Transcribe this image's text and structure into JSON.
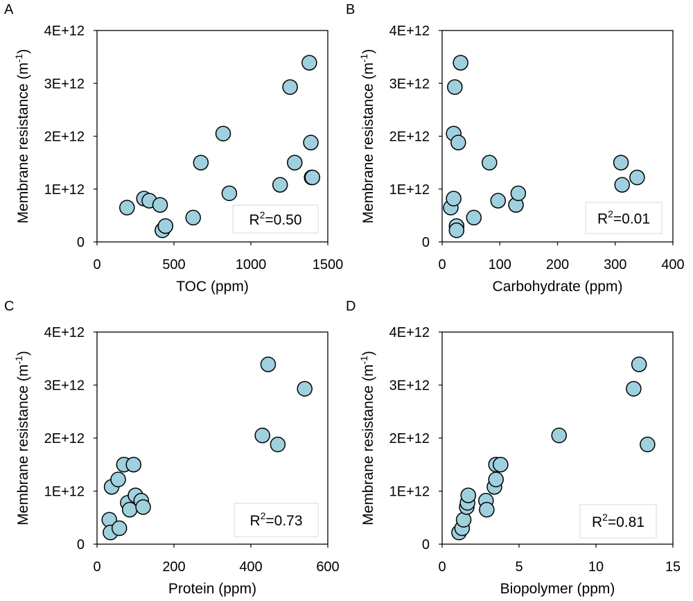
{
  "chart_data": [
    {
      "type": "scatter",
      "panel_label": "A",
      "xlabel": "TOC (ppm)",
      "ylabel_main": "Membrane resistance (m",
      "ylabel_sup": "-1",
      "ylabel_close": ")",
      "xlim": [
        0,
        1500
      ],
      "ylim": [
        0,
        4000000000000
      ],
      "xticks": [
        "0",
        "500",
        "1000",
        "1500"
      ],
      "yticks": [
        "0",
        "1E+12",
        "2E+12",
        "3E+12",
        "4E+12"
      ],
      "r2_prefix": "R",
      "r2_sup": "2",
      "r2_value": "=0.50",
      "x": [
        195,
        305,
        340,
        410,
        425,
        445,
        625,
        675,
        820,
        860,
        1190,
        1255,
        1285,
        1380,
        1390,
        1395,
        1400
      ],
      "y": [
        650000000000,
        820000000000,
        780000000000,
        700000000000,
        220000000000,
        300000000000,
        460000000000,
        1500000000000,
        2050000000000,
        920000000000,
        1080000000000,
        2930000000000,
        1500000000000,
        3390000000000,
        1880000000000,
        1220000000000,
        1220000000000
      ]
    },
    {
      "type": "scatter",
      "panel_label": "B",
      "xlabel": "Carbohydrate (ppm)",
      "ylabel_main": "Membrane resistance (m",
      "ylabel_sup": "-1",
      "ylabel_close": ")",
      "xlim": [
        0,
        400
      ],
      "ylim": [
        0,
        4000000000000
      ],
      "xticks": [
        "0",
        "100",
        "200",
        "300",
        "400"
      ],
      "yticks": [
        "0",
        "1E+12",
        "2E+12",
        "3E+12",
        "4E+12"
      ],
      "r2_prefix": "R",
      "r2_sup": "2",
      "r2_value": "=0.01",
      "x": [
        15,
        20,
        20,
        22,
        25,
        25,
        28,
        32,
        55,
        82,
        97,
        128,
        132,
        310,
        312,
        338
      ],
      "y": [
        650000000000,
        2050000000000,
        820000000000,
        2930000000000,
        300000000000,
        220000000000,
        1880000000000,
        3390000000000,
        460000000000,
        1500000000000,
        780000000000,
        700000000000,
        920000000000,
        1500000000000,
        1080000000000,
        1220000000000
      ]
    },
    {
      "type": "scatter",
      "panel_label": "C",
      "xlabel": "Protein (ppm)",
      "ylabel_main": "Membrane resistance (m",
      "ylabel_sup": "-1",
      "ylabel_close": ")",
      "xlim": [
        0,
        600
      ],
      "ylim": [
        0,
        4000000000000
      ],
      "xticks": [
        "0",
        "200",
        "400",
        "600"
      ],
      "yticks": [
        "0",
        "1E+12",
        "2E+12",
        "3E+12",
        "4E+12"
      ],
      "r2_prefix": "R",
      "r2_sup": "2",
      "r2_value": "=0.73",
      "x": [
        32,
        35,
        38,
        55,
        58,
        70,
        80,
        85,
        95,
        100,
        115,
        120,
        430,
        445,
        470,
        540
      ],
      "y": [
        460000000000,
        220000000000,
        1080000000000,
        1220000000000,
        300000000000,
        1500000000000,
        780000000000,
        650000000000,
        1500000000000,
        920000000000,
        820000000000,
        700000000000,
        2050000000000,
        3390000000000,
        1880000000000,
        2930000000000
      ]
    },
    {
      "type": "scatter",
      "panel_label": "D",
      "xlabel": "Biopolymer (ppm)",
      "ylabel_main": "Membrane resistance (m",
      "ylabel_sup": "-1",
      "ylabel_close": ")",
      "xlim": [
        0,
        15
      ],
      "ylim": [
        0,
        4000000000000
      ],
      "xticks": [
        "0",
        "5",
        "10",
        "15"
      ],
      "yticks": [
        "0",
        "1E+12",
        "2E+12",
        "3E+12",
        "4E+12"
      ],
      "r2_prefix": "R",
      "r2_sup": "2",
      "r2_value": "=0.81",
      "x": [
        1.1,
        1.3,
        1.4,
        1.6,
        1.65,
        1.7,
        2.85,
        2.9,
        3.4,
        3.5,
        3.5,
        3.8,
        7.6,
        12.45,
        12.8,
        13.35
      ],
      "y": [
        220000000000,
        300000000000,
        460000000000,
        700000000000,
        780000000000,
        920000000000,
        820000000000,
        650000000000,
        1080000000000,
        1220000000000,
        1500000000000,
        1500000000000,
        2050000000000,
        2930000000000,
        3390000000000,
        1880000000000
      ]
    }
  ],
  "colors": {
    "marker_fill": "#9fd0de",
    "marker_stroke": "#000000",
    "axis": "#000000",
    "r2_box": "#d9d9d9"
  }
}
